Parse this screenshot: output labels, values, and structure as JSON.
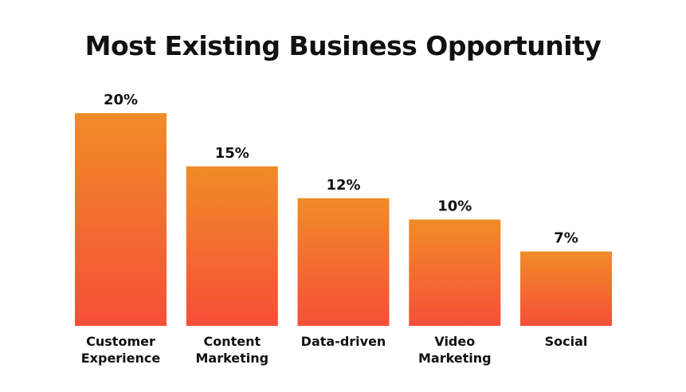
{
  "chart_data": {
    "type": "bar",
    "title": "Most Existing Business Opportunity",
    "categories": [
      [
        "Customer",
        "Experience"
      ],
      [
        "Content",
        "Marketing"
      ],
      [
        "Data-driven"
      ],
      [
        "Video",
        "Marketing"
      ],
      [
        "Social"
      ]
    ],
    "values": [
      20,
      15,
      12,
      10,
      7
    ],
    "value_labels": [
      "20%",
      "15%",
      "12%",
      "10%",
      "7%"
    ],
    "unit": "%",
    "ylim": [
      0,
      20
    ],
    "grid": false,
    "legend": "none",
    "colors": {
      "bar_top": "#f08c28",
      "bar_bottom": "#f64f38"
    }
  }
}
